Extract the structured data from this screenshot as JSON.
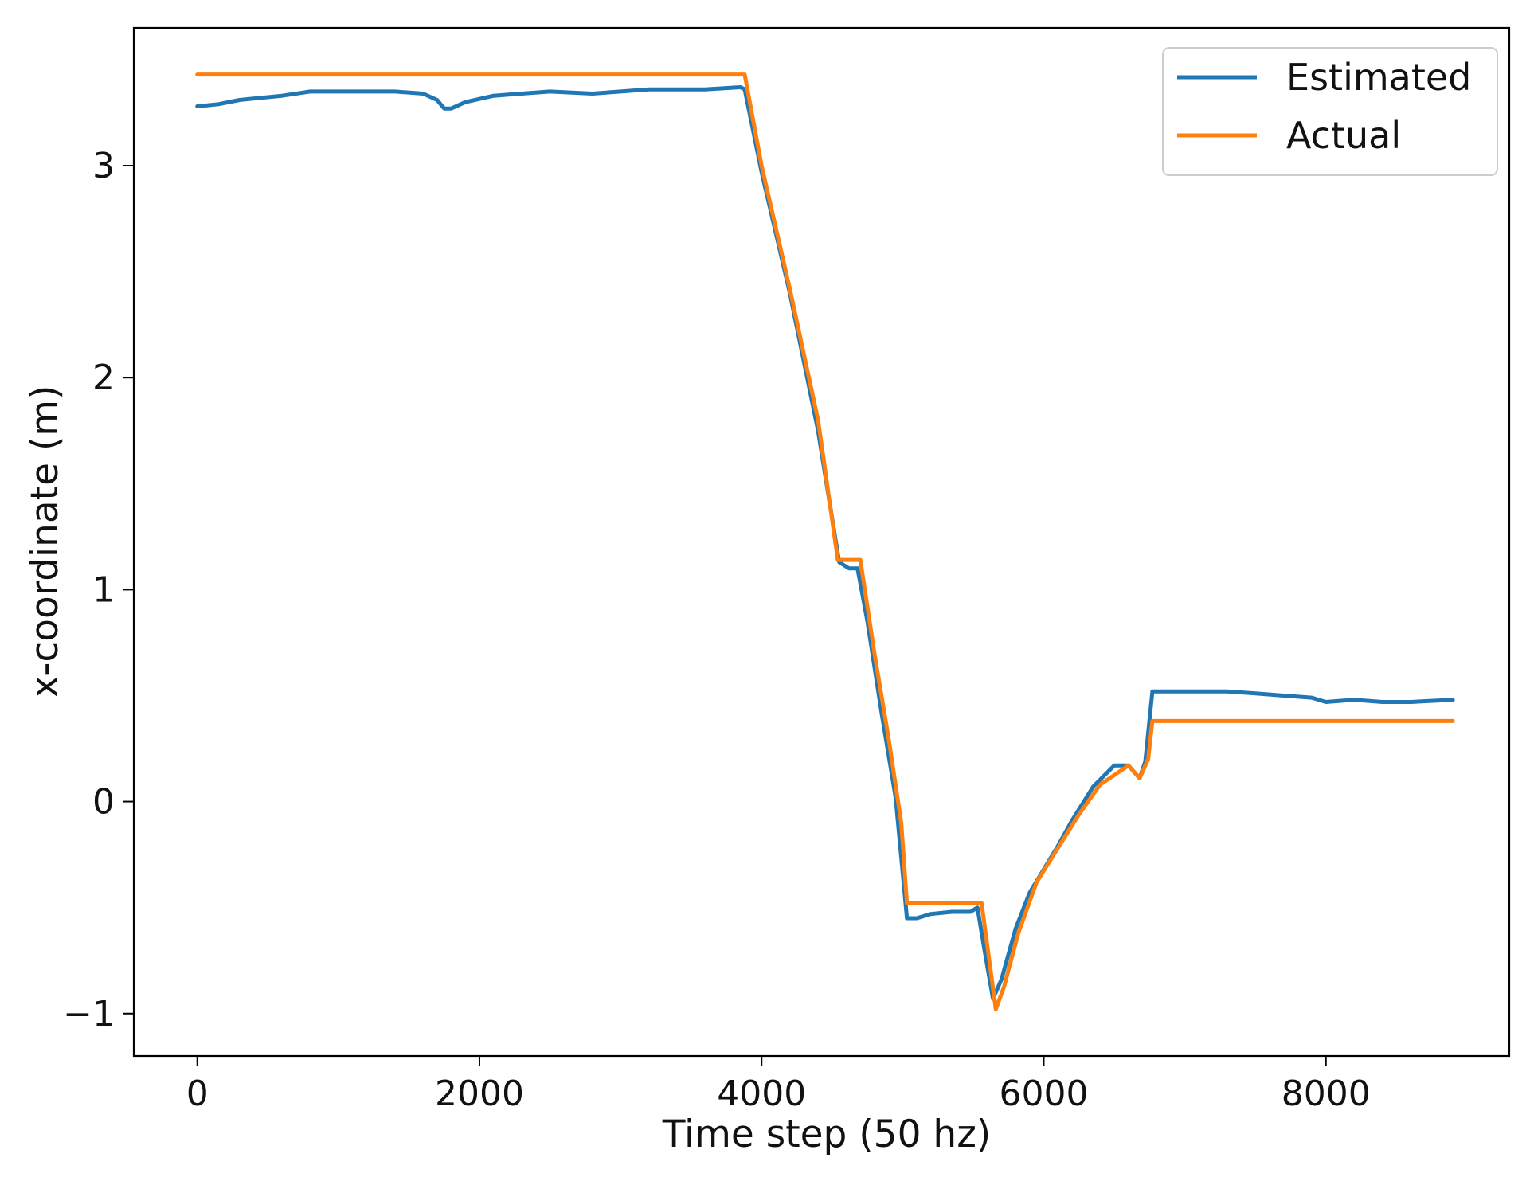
{
  "chart_data": {
    "type": "line",
    "title": "",
    "xlabel": "Time step (50 hz)",
    "ylabel": "x-coordinate (m)",
    "xlim": [
      -450,
      9300
    ],
    "ylim": [
      -1.2,
      3.65
    ],
    "xticks": [
      0,
      2000,
      4000,
      6000,
      8000
    ],
    "xtick_labels": [
      "0",
      "2000",
      "4000",
      "6000",
      "8000"
    ],
    "yticks": [
      -1,
      0,
      1,
      2,
      3
    ],
    "ytick_labels": [
      "−1",
      "0",
      "1",
      "2",
      "3"
    ],
    "grid": false,
    "legend_position": "top-right",
    "series": [
      {
        "name": "Estimated",
        "color": "#1f77b4",
        "points": [
          [
            0,
            3.28
          ],
          [
            150,
            3.29
          ],
          [
            300,
            3.31
          ],
          [
            450,
            3.32
          ],
          [
            600,
            3.33
          ],
          [
            800,
            3.35
          ],
          [
            1000,
            3.35
          ],
          [
            1200,
            3.35
          ],
          [
            1400,
            3.35
          ],
          [
            1600,
            3.34
          ],
          [
            1700,
            3.31
          ],
          [
            1750,
            3.27
          ],
          [
            1800,
            3.27
          ],
          [
            1900,
            3.3
          ],
          [
            2100,
            3.33
          ],
          [
            2300,
            3.34
          ],
          [
            2500,
            3.35
          ],
          [
            2800,
            3.34
          ],
          [
            3000,
            3.35
          ],
          [
            3200,
            3.36
          ],
          [
            3400,
            3.36
          ],
          [
            3600,
            3.36
          ],
          [
            3850,
            3.37
          ],
          [
            3880,
            3.36
          ],
          [
            4000,
            2.97
          ],
          [
            4200,
            2.4
          ],
          [
            4400,
            1.75
          ],
          [
            4550,
            1.13
          ],
          [
            4620,
            1.1
          ],
          [
            4680,
            1.1
          ],
          [
            4750,
            0.85
          ],
          [
            4850,
            0.42
          ],
          [
            4950,
            0.02
          ],
          [
            5030,
            -0.55
          ],
          [
            5100,
            -0.55
          ],
          [
            5200,
            -0.53
          ],
          [
            5350,
            -0.52
          ],
          [
            5480,
            -0.52
          ],
          [
            5530,
            -0.5
          ],
          [
            5580,
            -0.7
          ],
          [
            5640,
            -0.93
          ],
          [
            5700,
            -0.84
          ],
          [
            5800,
            -0.6
          ],
          [
            5900,
            -0.43
          ],
          [
            6000,
            -0.32
          ],
          [
            6100,
            -0.21
          ],
          [
            6200,
            -0.09
          ],
          [
            6350,
            0.07
          ],
          [
            6500,
            0.17
          ],
          [
            6600,
            0.17
          ],
          [
            6680,
            0.11
          ],
          [
            6720,
            0.19
          ],
          [
            6770,
            0.52
          ],
          [
            6900,
            0.52
          ],
          [
            7100,
            0.52
          ],
          [
            7300,
            0.52
          ],
          [
            7500,
            0.51
          ],
          [
            7700,
            0.5
          ],
          [
            7900,
            0.49
          ],
          [
            8000,
            0.47
          ],
          [
            8200,
            0.48
          ],
          [
            8400,
            0.47
          ],
          [
            8600,
            0.47
          ],
          [
            8900,
            0.48
          ]
        ]
      },
      {
        "name": "Actual",
        "color": "#ff7f0e",
        "points": [
          [
            0,
            3.43
          ],
          [
            3880,
            3.43
          ],
          [
            4000,
            3.0
          ],
          [
            4200,
            2.42
          ],
          [
            4400,
            1.8
          ],
          [
            4540,
            1.14
          ],
          [
            4700,
            1.14
          ],
          [
            4800,
            0.7
          ],
          [
            4900,
            0.3
          ],
          [
            4990,
            -0.1
          ],
          [
            5030,
            -0.48
          ],
          [
            5560,
            -0.48
          ],
          [
            5660,
            -0.98
          ],
          [
            5720,
            -0.87
          ],
          [
            5820,
            -0.62
          ],
          [
            5950,
            -0.38
          ],
          [
            6100,
            -0.22
          ],
          [
            6250,
            -0.06
          ],
          [
            6400,
            0.08
          ],
          [
            6600,
            0.17
          ],
          [
            6680,
            0.11
          ],
          [
            6740,
            0.2
          ],
          [
            6770,
            0.38
          ],
          [
            8900,
            0.38
          ]
        ]
      }
    ]
  }
}
